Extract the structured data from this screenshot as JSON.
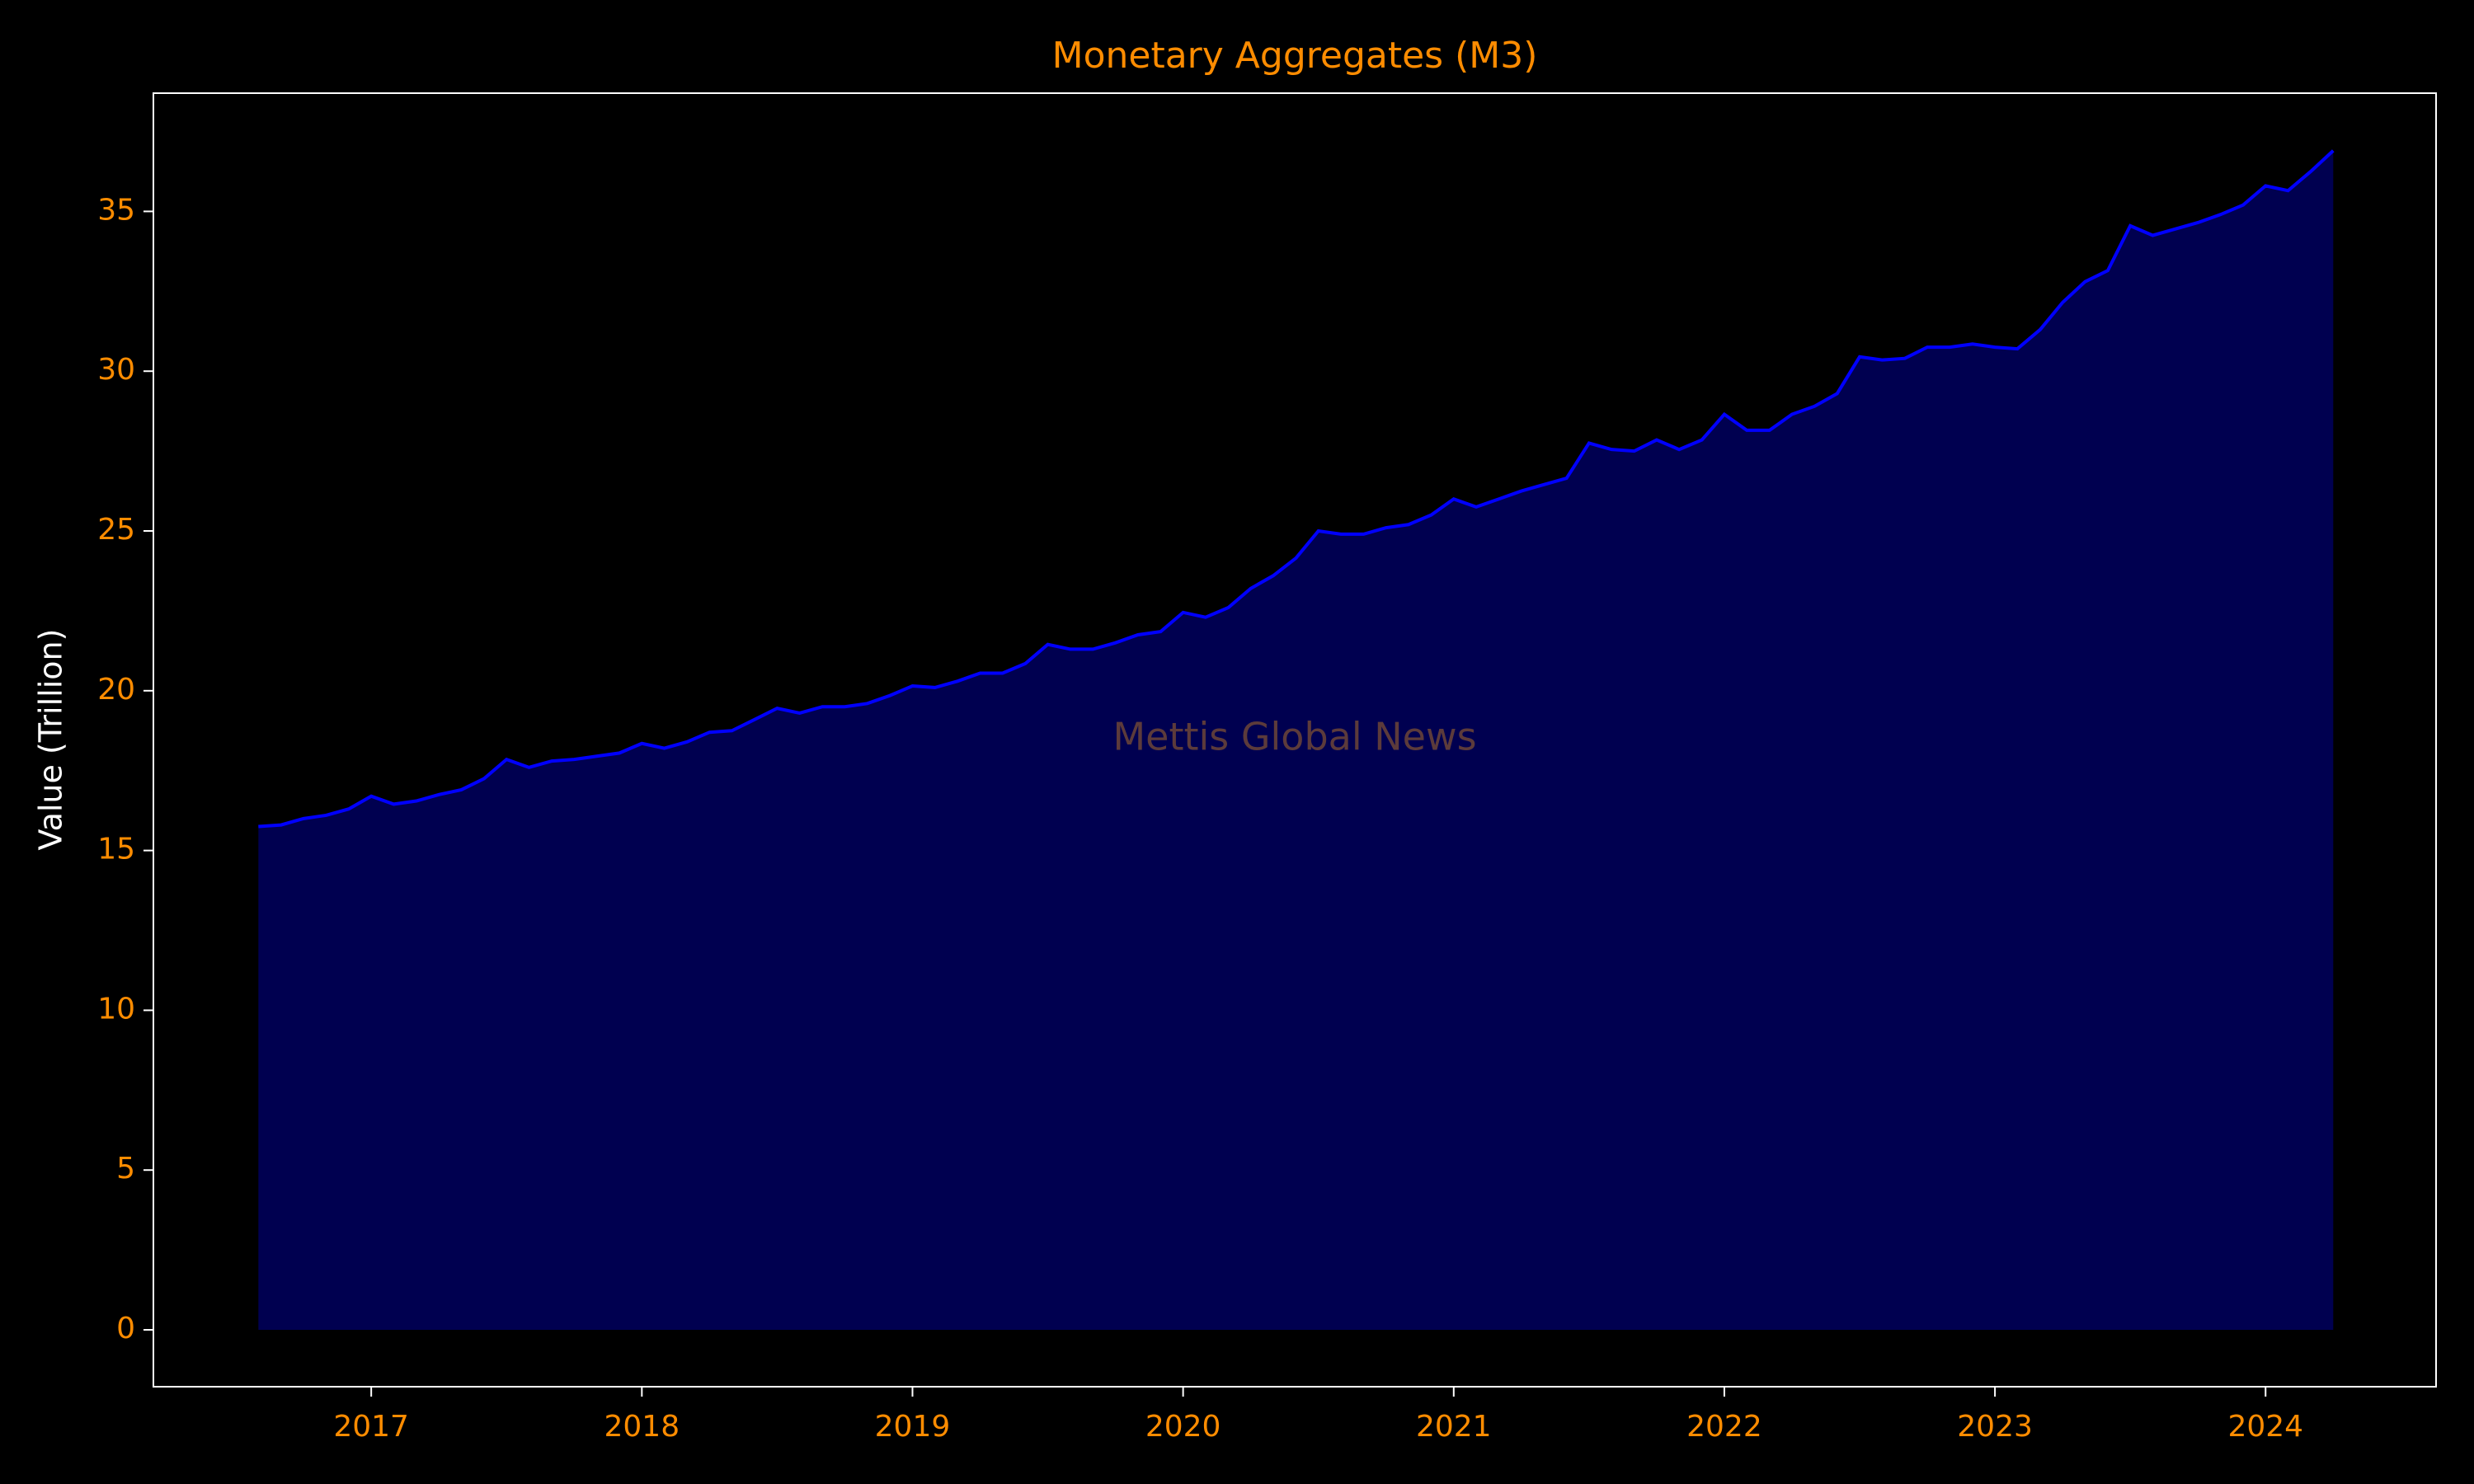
{
  "chart_data": {
    "type": "area",
    "title": "Monetary Aggregates (M3)",
    "ylabel": "Value (Trillion)",
    "watermark": "Mettis Global News",
    "x": [
      2016.583,
      2016.667,
      2016.75,
      2016.833,
      2016.917,
      2017,
      2017.083,
      2017.167,
      2017.25,
      2017.333,
      2017.417,
      2017.5,
      2017.583,
      2017.667,
      2017.75,
      2017.833,
      2017.917,
      2018,
      2018.083,
      2018.167,
      2018.25,
      2018.333,
      2018.417,
      2018.5,
      2018.583,
      2018.667,
      2018.75,
      2018.833,
      2018.917,
      2019,
      2019.083,
      2019.167,
      2019.25,
      2019.333,
      2019.417,
      2019.5,
      2019.583,
      2019.667,
      2019.75,
      2019.833,
      2019.917,
      2020,
      2020.083,
      2020.167,
      2020.25,
      2020.333,
      2020.417,
      2020.5,
      2020.583,
      2020.667,
      2020.75,
      2020.833,
      2020.917,
      2021,
      2021.083,
      2021.167,
      2021.25,
      2021.333,
      2021.417,
      2021.5,
      2021.583,
      2021.667,
      2021.75,
      2021.833,
      2021.917,
      2022,
      2022.083,
      2022.167,
      2022.25,
      2022.333,
      2022.417,
      2022.5,
      2022.583,
      2022.667,
      2022.75,
      2022.833,
      2022.917,
      2023,
      2023.083,
      2023.167,
      2023.25,
      2023.333,
      2023.417,
      2023.5,
      2023.583,
      2023.667,
      2023.75,
      2023.833,
      2023.917,
      2024,
      2024.083,
      2024.167,
      2024.25
    ],
    "series": [
      {
        "line_color": "#0000ff",
        "fill_color": "#000050",
        "values": [
          15.75,
          15.8,
          16.0,
          16.1,
          16.3,
          16.7,
          16.45,
          16.55,
          16.75,
          16.9,
          17.25,
          17.85,
          17.6,
          17.8,
          17.85,
          17.95,
          18.05,
          18.35,
          18.2,
          18.4,
          18.7,
          18.75,
          19.1,
          19.45,
          19.3,
          19.5,
          19.5,
          19.6,
          19.85,
          20.15,
          20.1,
          20.3,
          20.55,
          20.55,
          20.85,
          21.45,
          21.3,
          21.3,
          21.5,
          21.75,
          21.85,
          22.45,
          22.3,
          22.6,
          23.2,
          23.6,
          24.15,
          25.0,
          24.9,
          24.9,
          25.1,
          25.2,
          25.5,
          26.0,
          25.75,
          26.0,
          26.25,
          26.45,
          26.65,
          27.75,
          27.55,
          27.5,
          27.85,
          27.55,
          27.85,
          28.65,
          28.15,
          28.15,
          28.65,
          28.9,
          29.3,
          30.45,
          30.35,
          30.4,
          30.75,
          30.75,
          30.85,
          30.75,
          30.7,
          31.3,
          32.15,
          32.8,
          33.15,
          34.55,
          34.25,
          34.45,
          34.65,
          34.9,
          35.2,
          35.8,
          35.65,
          36.25,
          36.9
        ]
      }
    ],
    "xlim": [
      2016.195,
      2024.63
    ],
    "ylim": [
      -1.78,
      38.7
    ],
    "xticks": [
      2017,
      2018,
      2019,
      2020,
      2021,
      2022,
      2023,
      2024
    ],
    "yticks": [
      0,
      5,
      10,
      15,
      20,
      25,
      30,
      35
    ],
    "title_color": "#ff8c00",
    "tick_color": "#ff8c00",
    "label_color": "#ffffff",
    "watermark_color": "#5c3b3b"
  }
}
